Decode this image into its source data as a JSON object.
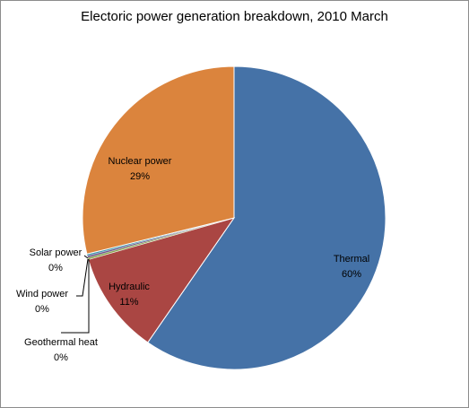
{
  "chart_data": {
    "type": "pie",
    "title": "Electoric power generation breakdown, 2010 March",
    "slices": [
      {
        "label": "Thermal",
        "value": 60,
        "pct_label": "60%",
        "color": "#4572A7"
      },
      {
        "label": "Hydraulic",
        "value": 11,
        "pct_label": "11%",
        "color": "#AA4643"
      },
      {
        "label": "Geothermal heat",
        "value": 0.2,
        "pct_label": "0%",
        "color": "#89A54E"
      },
      {
        "label": "Wind power",
        "value": 0.2,
        "pct_label": "0%",
        "color": "#71588F"
      },
      {
        "label": "Solar power",
        "value": 0.2,
        "pct_label": "0%",
        "color": "#4198AF"
      },
      {
        "label": "Nuclear power",
        "value": 29,
        "pct_label": "29%",
        "color": "#DB843D"
      }
    ],
    "legend": "none",
    "label_style": "name-and-percent"
  }
}
